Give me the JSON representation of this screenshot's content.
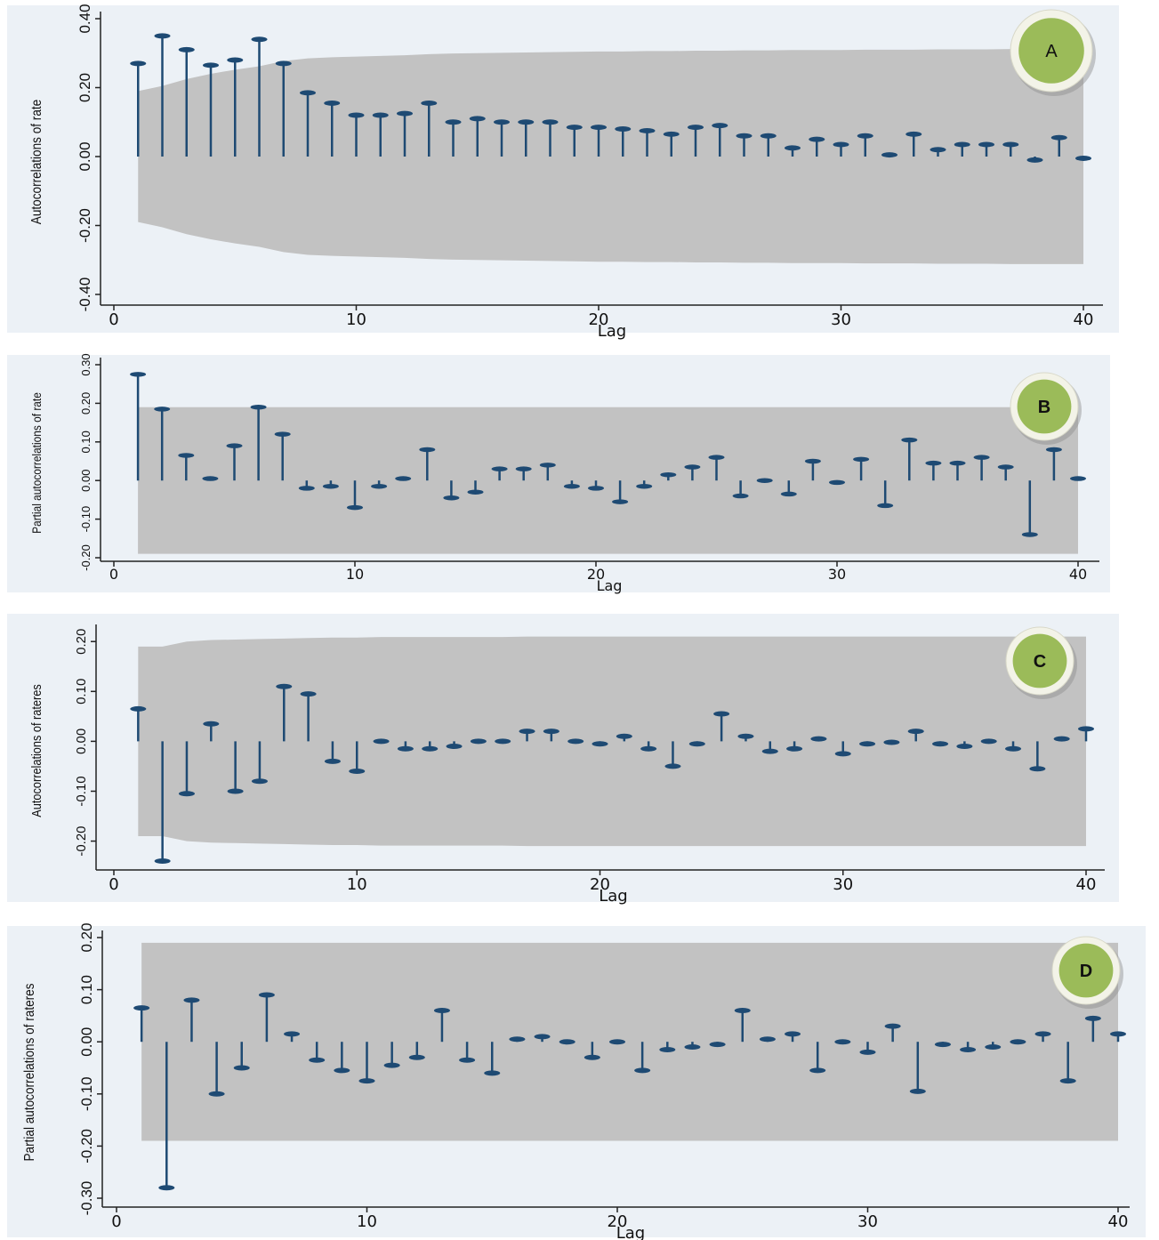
{
  "colors": {
    "panel_bg": "#ecf1f6",
    "band": "#c2c2c2",
    "stem": "#1e4a73",
    "axis": "#222222",
    "badge_fill": "#9bbb59",
    "badge_ring": "#f3f3e8"
  },
  "chart_data": [
    {
      "id": "A",
      "type": "stem",
      "badge_label": "A",
      "xlabel": "Lag",
      "ylabel": "Autocorrelations of rate",
      "xlim": [
        0,
        40
      ],
      "ylim": [
        -0.4,
        0.4
      ],
      "xticks": [
        "0",
        "10",
        "20",
        "30",
        "40"
      ],
      "yticks": [
        "-0.40",
        "-0.20",
        "0.00",
        "0.20",
        "0.40"
      ],
      "ytick_values": [
        -0.4,
        -0.2,
        0.0,
        0.2,
        0.4
      ],
      "confidence_band": "bartlett",
      "band_upper": [
        0.19,
        0.205,
        0.225,
        0.24,
        0.252,
        0.262,
        0.277,
        0.285,
        0.288,
        0.29,
        0.292,
        0.294,
        0.297,
        0.299,
        0.3,
        0.301,
        0.302,
        0.303,
        0.304,
        0.305,
        0.305,
        0.306,
        0.306,
        0.307,
        0.307,
        0.308,
        0.308,
        0.309,
        0.309,
        0.309,
        0.31,
        0.31,
        0.31,
        0.311,
        0.311,
        0.311,
        0.312,
        0.312,
        0.312,
        0.312
      ],
      "lags": [
        1,
        2,
        3,
        4,
        5,
        6,
        7,
        8,
        9,
        10,
        11,
        12,
        13,
        14,
        15,
        16,
        17,
        18,
        19,
        20,
        21,
        22,
        23,
        24,
        25,
        26,
        27,
        28,
        29,
        30,
        31,
        32,
        33,
        34,
        35,
        36,
        37,
        38,
        39,
        40
      ],
      "values": [
        0.27,
        0.35,
        0.31,
        0.265,
        0.28,
        0.34,
        0.27,
        0.185,
        0.155,
        0.12,
        0.12,
        0.125,
        0.155,
        0.1,
        0.11,
        0.1,
        0.1,
        0.1,
        0.085,
        0.085,
        0.08,
        0.075,
        0.065,
        0.085,
        0.09,
        0.06,
        0.06,
        0.025,
        0.05,
        0.035,
        0.06,
        0.005,
        0.065,
        0.02,
        0.035,
        0.035,
        0.035,
        -0.01,
        0.055,
        -0.005
      ]
    },
    {
      "id": "B",
      "type": "stem",
      "badge_label": "B",
      "xlabel": "Lag",
      "ylabel": "Partial autocorrelations of rate",
      "xlim": [
        0,
        40
      ],
      "ylim": [
        -0.2,
        0.3
      ],
      "xticks": [
        "0",
        "10",
        "20",
        "30",
        "40"
      ],
      "yticks": [
        "-0.20",
        "-0.10",
        "0.00",
        "0.10",
        "0.20",
        "0.30"
      ],
      "ytick_values": [
        -0.2,
        -0.1,
        0.0,
        0.1,
        0.2,
        0.3
      ],
      "confidence_band": "constant",
      "band_upper": [
        0.19
      ],
      "lags": [
        1,
        2,
        3,
        4,
        5,
        6,
        7,
        8,
        9,
        10,
        11,
        12,
        13,
        14,
        15,
        16,
        17,
        18,
        19,
        20,
        21,
        22,
        23,
        24,
        25,
        26,
        27,
        28,
        29,
        30,
        31,
        32,
        33,
        34,
        35,
        36,
        37,
        38,
        39,
        40
      ],
      "values": [
        0.275,
        0.185,
        0.065,
        0.005,
        0.09,
        0.19,
        0.12,
        -0.02,
        -0.015,
        -0.07,
        -0.015,
        0.005,
        0.08,
        -0.045,
        -0.03,
        0.03,
        0.03,
        0.04,
        -0.015,
        -0.02,
        -0.055,
        -0.015,
        0.015,
        0.035,
        0.06,
        -0.04,
        0.0,
        -0.035,
        0.05,
        -0.005,
        0.055,
        -0.065,
        0.105,
        0.045,
        0.045,
        0.06,
        0.035,
        -0.14,
        0.08,
        0.005
      ]
    },
    {
      "id": "C",
      "type": "stem",
      "badge_label": "C",
      "xlabel": "Lag",
      "ylabel": "Autocorrelations of rateres",
      "xlim": [
        0,
        40
      ],
      "ylim": [
        -0.24,
        0.22
      ],
      "xticks": [
        "0",
        "10",
        "20",
        "30",
        "40"
      ],
      "yticks": [
        "-0.20",
        "-0.10",
        "0.00",
        "0.10",
        "0.20"
      ],
      "ytick_values": [
        -0.2,
        -0.1,
        0.0,
        0.1,
        0.2
      ],
      "confidence_band": "bartlett",
      "band_upper": [
        0.19,
        0.19,
        0.2,
        0.203,
        0.204,
        0.205,
        0.206,
        0.207,
        0.208,
        0.208,
        0.209,
        0.209,
        0.209,
        0.209,
        0.209,
        0.209,
        0.21,
        0.21,
        0.21,
        0.21,
        0.21,
        0.21,
        0.21,
        0.21,
        0.21,
        0.21,
        0.21,
        0.21,
        0.21,
        0.21,
        0.21,
        0.21,
        0.21,
        0.21,
        0.21,
        0.21,
        0.21,
        0.21,
        0.21,
        0.21
      ],
      "lags": [
        1,
        2,
        3,
        4,
        5,
        6,
        7,
        8,
        9,
        10,
        11,
        12,
        13,
        14,
        15,
        16,
        17,
        18,
        19,
        20,
        21,
        22,
        23,
        24,
        25,
        26,
        27,
        28,
        29,
        30,
        31,
        32,
        33,
        34,
        35,
        36,
        37,
        38,
        39,
        40
      ],
      "values": [
        0.065,
        -0.24,
        -0.105,
        0.035,
        -0.1,
        -0.08,
        0.11,
        0.095,
        -0.04,
        -0.06,
        0.0,
        -0.015,
        -0.015,
        -0.01,
        0.0,
        0.0,
        0.02,
        0.02,
        0.0,
        -0.005,
        0.01,
        -0.015,
        -0.05,
        -0.005,
        0.055,
        0.01,
        -0.02,
        -0.015,
        0.005,
        -0.025,
        -0.005,
        -0.002,
        0.02,
        -0.005,
        -0.01,
        0.0,
        -0.015,
        -0.055,
        0.005,
        0.025
      ]
    },
    {
      "id": "D",
      "type": "stem",
      "badge_label": "D",
      "xlabel": "Lag",
      "ylabel": "Partial autocorrelations of rateres",
      "xlim": [
        0,
        40
      ],
      "ylim": [
        -0.3,
        0.2
      ],
      "xticks": [
        "0",
        "10",
        "20",
        "30",
        "40"
      ],
      "yticks": [
        "-0.30",
        "-0.20",
        "-0.10",
        "0.00",
        "0.10",
        "0.20"
      ],
      "ytick_values": [
        -0.3,
        -0.2,
        -0.1,
        0.0,
        0.1,
        0.2
      ],
      "confidence_band": "constant",
      "band_upper": [
        0.19
      ],
      "lags": [
        1,
        2,
        3,
        4,
        5,
        6,
        7,
        8,
        9,
        10,
        11,
        12,
        13,
        14,
        15,
        16,
        17,
        18,
        19,
        20,
        21,
        22,
        23,
        24,
        25,
        26,
        27,
        28,
        29,
        30,
        31,
        32,
        33,
        34,
        35,
        36,
        37,
        38,
        39,
        40
      ],
      "values": [
        0.065,
        -0.28,
        0.08,
        -0.1,
        -0.05,
        0.09,
        0.015,
        -0.035,
        -0.055,
        -0.075,
        -0.045,
        -0.03,
        0.06,
        -0.035,
        -0.06,
        0.005,
        0.01,
        0.0,
        -0.03,
        0.0,
        -0.055,
        -0.015,
        -0.01,
        -0.005,
        0.06,
        0.005,
        0.015,
        -0.055,
        0.0,
        -0.02,
        0.03,
        -0.095,
        -0.005,
        -0.015,
        -0.01,
        0.0,
        0.015,
        -0.075,
        0.045,
        0.015
      ]
    }
  ]
}
